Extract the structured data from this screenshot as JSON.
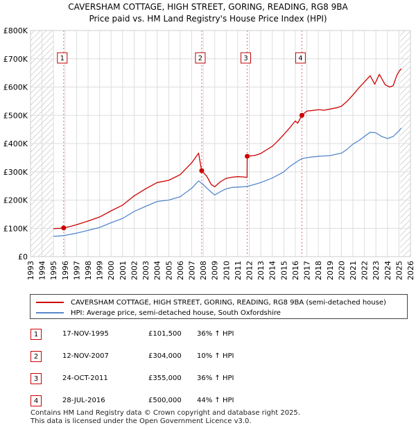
{
  "header": {
    "title": "CAVERSHAM COTTAGE, HIGH STREET, GORING, READING, RG8 9BA",
    "subtitle": "Price paid vs. HM Land Registry's House Price Index (HPI)"
  },
  "chart_data": {
    "type": "line",
    "title": "CAVERSHAM COTTAGE, HIGH STREET, GORING, READING, RG8 9BA",
    "subtitle": "Price paid vs. HM Land Registry's House Price Index (HPI)",
    "xlabel": "",
    "ylabel": "",
    "xlim": [
      1993,
      2026
    ],
    "ylim": [
      0,
      800000
    ],
    "y_ticks": [
      0,
      100000,
      200000,
      300000,
      400000,
      500000,
      600000,
      700000,
      800000
    ],
    "y_tick_labels": [
      "£0",
      "£100K",
      "£200K",
      "£300K",
      "£400K",
      "£500K",
      "£600K",
      "£700K",
      "£800K"
    ],
    "x_ticks": [
      "1993",
      "1994",
      "1995",
      "1996",
      "1997",
      "1998",
      "1999",
      "2000",
      "2001",
      "2002",
      "2003",
      "2004",
      "2005",
      "2006",
      "2007",
      "2008",
      "2009",
      "2010",
      "2011",
      "2012",
      "2013",
      "2014",
      "2015",
      "2016",
      "2017",
      "2018",
      "2019",
      "2020",
      "2021",
      "2022",
      "2023",
      "2024",
      "2025",
      "2026"
    ],
    "grid": true,
    "hatched_ranges": [
      [
        1993,
        1995.0
      ],
      [
        2025.1,
        2026
      ]
    ],
    "series": [
      {
        "name": "CAVERSHAM COTTAGE, HIGH STREET, GORING, READING, RG8 9BA (semi-detached house)",
        "color": "#cc0000",
        "points": [
          [
            1995.0,
            99000
          ],
          [
            1995.5,
            100000
          ],
          [
            1995.88,
            101500
          ],
          [
            1996.5,
            107000
          ],
          [
            1997.0,
            113000
          ],
          [
            1998.0,
            126000
          ],
          [
            1999.0,
            140000
          ],
          [
            2000.0,
            162000
          ],
          [
            2001.0,
            182000
          ],
          [
            2002.0,
            215000
          ],
          [
            2003.0,
            240000
          ],
          [
            2004.0,
            262000
          ],
          [
            2005.0,
            270000
          ],
          [
            2006.0,
            290000
          ],
          [
            2007.0,
            332000
          ],
          [
            2007.6,
            366000
          ],
          [
            2007.86,
            304000
          ],
          [
            2008.3,
            285000
          ],
          [
            2008.7,
            255000
          ],
          [
            2009.0,
            247000
          ],
          [
            2009.5,
            265000
          ],
          [
            2010.0,
            277000
          ],
          [
            2010.5,
            281000
          ],
          [
            2011.0,
            283000
          ],
          [
            2011.5,
            282000
          ],
          [
            2011.81,
            280000
          ],
          [
            2011.82,
            355000
          ],
          [
            2012.5,
            358000
          ],
          [
            2013.0,
            365000
          ],
          [
            2013.5,
            378000
          ],
          [
            2014.0,
            390000
          ],
          [
            2014.5,
            410000
          ],
          [
            2015.0,
            432000
          ],
          [
            2015.5,
            455000
          ],
          [
            2016.0,
            480000
          ],
          [
            2016.2,
            472000
          ],
          [
            2016.57,
            500000
          ],
          [
            2017.0,
            515000
          ],
          [
            2017.5,
            517000
          ],
          [
            2018.0,
            520000
          ],
          [
            2018.5,
            518000
          ],
          [
            2019.0,
            522000
          ],
          [
            2019.5,
            526000
          ],
          [
            2020.0,
            532000
          ],
          [
            2020.5,
            550000
          ],
          [
            2021.0,
            572000
          ],
          [
            2021.5,
            596000
          ],
          [
            2022.0,
            618000
          ],
          [
            2022.5,
            640000
          ],
          [
            2022.9,
            610000
          ],
          [
            2023.3,
            645000
          ],
          [
            2023.8,
            608000
          ],
          [
            2024.2,
            600000
          ],
          [
            2024.5,
            605000
          ],
          [
            2024.8,
            640000
          ],
          [
            2025.0,
            655000
          ],
          [
            2025.2,
            665000
          ]
        ]
      },
      {
        "name": "HPI: Average price, semi-detached house, South Oxfordshire",
        "color": "#5588cc",
        "points": [
          [
            1995.0,
            72000
          ],
          [
            1995.5,
            73000
          ],
          [
            1996.0,
            75000
          ],
          [
            1997.0,
            83000
          ],
          [
            1998.0,
            93000
          ],
          [
            1999.0,
            103000
          ],
          [
            2000.0,
            120000
          ],
          [
            2001.0,
            135000
          ],
          [
            2002.0,
            160000
          ],
          [
            2003.0,
            178000
          ],
          [
            2004.0,
            195000
          ],
          [
            2005.0,
            200000
          ],
          [
            2006.0,
            212000
          ],
          [
            2007.0,
            242000
          ],
          [
            2007.6,
            268000
          ],
          [
            2008.0,
            255000
          ],
          [
            2008.5,
            235000
          ],
          [
            2009.0,
            218000
          ],
          [
            2009.5,
            230000
          ],
          [
            2010.0,
            240000
          ],
          [
            2010.5,
            245000
          ],
          [
            2011.0,
            246000
          ],
          [
            2011.5,
            247000
          ],
          [
            2012.0,
            250000
          ],
          [
            2013.0,
            262000
          ],
          [
            2014.0,
            278000
          ],
          [
            2015.0,
            300000
          ],
          [
            2015.5,
            318000
          ],
          [
            2016.0,
            332000
          ],
          [
            2016.57,
            347000
          ],
          [
            2017.0,
            350000
          ],
          [
            2017.5,
            353000
          ],
          [
            2018.0,
            355000
          ],
          [
            2018.5,
            356000
          ],
          [
            2019.0,
            357000
          ],
          [
            2019.5,
            362000
          ],
          [
            2020.0,
            366000
          ],
          [
            2020.5,
            380000
          ],
          [
            2021.0,
            398000
          ],
          [
            2021.5,
            410000
          ],
          [
            2022.0,
            425000
          ],
          [
            2022.5,
            440000
          ],
          [
            2023.0,
            438000
          ],
          [
            2023.5,
            425000
          ],
          [
            2024.0,
            418000
          ],
          [
            2024.5,
            425000
          ],
          [
            2025.0,
            445000
          ],
          [
            2025.2,
            455000
          ]
        ]
      }
    ],
    "sales": [
      {
        "label": "1",
        "x": 1995.88,
        "price": 101500
      },
      {
        "label": "2",
        "x": 2007.87,
        "price": 304000
      },
      {
        "label": "3",
        "x": 2011.82,
        "price": 355000
      },
      {
        "label": "4",
        "x": 2016.57,
        "price": 500000
      }
    ]
  },
  "legend": {
    "property": "CAVERSHAM COTTAGE, HIGH STREET, GORING, READING, RG8 9BA (semi-detached house)",
    "hpi": "HPI: Average price, semi-detached house, South Oxfordshire",
    "property_color": "#cc0000",
    "hpi_color": "#5588cc"
  },
  "transactions": [
    {
      "num": "1",
      "date": "17-NOV-1995",
      "price": "£101,500",
      "hpi": "36% ↑ HPI"
    },
    {
      "num": "2",
      "date": "12-NOV-2007",
      "price": "£304,000",
      "hpi": "10% ↑ HPI"
    },
    {
      "num": "3",
      "date": "24-OCT-2011",
      "price": "£355,000",
      "hpi": "36% ↑ HPI"
    },
    {
      "num": "4",
      "date": "28-JUL-2016",
      "price": "£500,000",
      "hpi": "44% ↑ HPI"
    }
  ],
  "footer": {
    "line1": "Contains HM Land Registry data © Crown copyright and database right 2025.",
    "line2": "This data is licensed under the Open Government Licence v3.0."
  }
}
